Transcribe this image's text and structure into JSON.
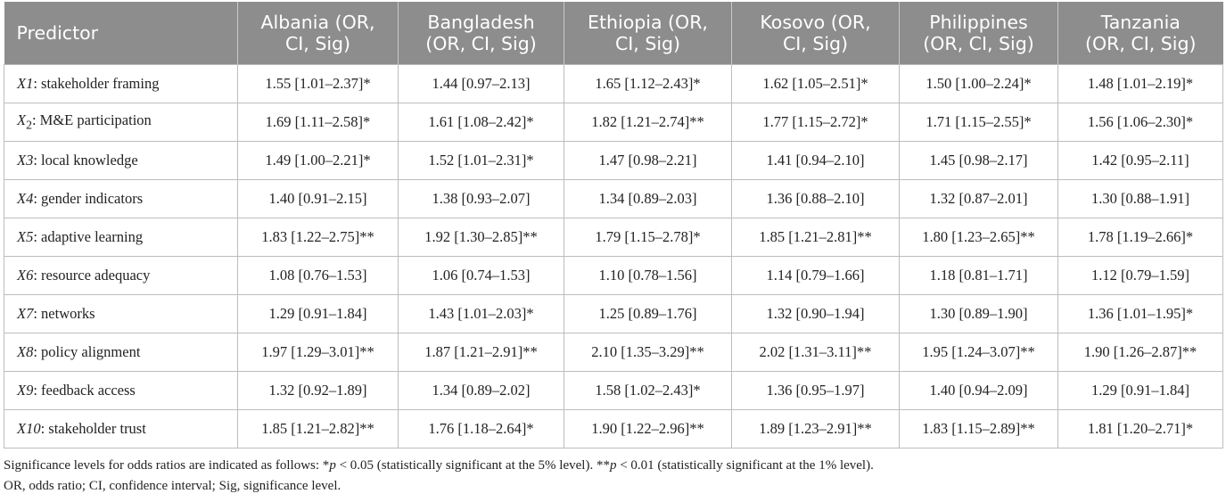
{
  "table": {
    "headers": [
      [
        "Predictor"
      ],
      [
        "Albania (OR,",
        "CI, Sig)"
      ],
      [
        "Bangladesh",
        "(OR, CI, Sig)"
      ],
      [
        "Ethiopia (OR,",
        "CI, Sig)"
      ],
      [
        "Kosovo (OR,",
        "CI, Sig)"
      ],
      [
        "Philippines",
        "(OR, CI, Sig)"
      ],
      [
        "Tanzania",
        "(OR, CI, Sig)"
      ]
    ],
    "rows": [
      {
        "var": "X1",
        "sub": "",
        "label": ": stakeholder framing",
        "values": [
          "1.55 [1.01–2.37]*",
          "1.44 [0.97–2.13]",
          "1.65 [1.12–2.43]*",
          "1.62 [1.05–2.51]*",
          "1.50 [1.00–2.24]*",
          "1.48 [1.01–2.19]*"
        ]
      },
      {
        "var": "X",
        "sub": "2",
        "label": ": M&E participation",
        "values": [
          "1.69 [1.11–2.58]*",
          "1.61 [1.08–2.42]*",
          "1.82 [1.21–2.74]**",
          "1.77 [1.15–2.72]*",
          "1.71 [1.15–2.55]*",
          "1.56 [1.06–2.30]*"
        ]
      },
      {
        "var": "X3",
        "sub": "",
        "label": ": local knowledge",
        "values": [
          "1.49 [1.00–2.21]*",
          "1.52 [1.01–2.31]*",
          "1.47 [0.98–2.21]",
          "1.41 [0.94–2.10]",
          "1.45 [0.98–2.17]",
          "1.42 [0.95–2.11]"
        ]
      },
      {
        "var": "X4",
        "sub": "",
        "label": ": gender indicators",
        "values": [
          "1.40 [0.91–2.15]",
          "1.38 [0.93–2.07]",
          "1.34 [0.89–2.03]",
          "1.36 [0.88–2.10]",
          "1.32 [0.87–2.01]",
          "1.30 [0.88–1.91]"
        ]
      },
      {
        "var": "X5",
        "sub": "",
        "label": ": adaptive learning",
        "values": [
          "1.83 [1.22–2.75]**",
          "1.92 [1.30–2.85]**",
          "1.79 [1.15–2.78]*",
          "1.85 [1.21–2.81]**",
          "1.80 [1.23–2.65]**",
          "1.78 [1.19–2.66]*"
        ]
      },
      {
        "var": "X6",
        "sub": "",
        "label": ": resource adequacy",
        "values": [
          "1.08 [0.76–1.53]",
          "1.06 [0.74–1.53]",
          "1.10 [0.78–1.56]",
          "1.14 [0.79–1.66]",
          "1.18 [0.81–1.71]",
          "1.12 [0.79–1.59]"
        ]
      },
      {
        "var": "X7",
        "sub": "",
        "label": ": networks",
        "values": [
          "1.29 [0.91–1.84]",
          "1.43 [1.01–2.03]*",
          "1.25 [0.89–1.76]",
          "1.32 [0.90–1.94]",
          "1.30 [0.89–1.90]",
          "1.36 [1.01–1.95]*"
        ]
      },
      {
        "var": "X8",
        "sub": "",
        "label": ": policy alignment",
        "values": [
          "1.97 [1.29–3.01]**",
          "1.87 [1.21–2.91]**",
          "2.10 [1.35–3.29]**",
          "2.02 [1.31–3.11]**",
          "1.95 [1.24–3.07]**",
          "1.90 [1.26–2.87]**"
        ]
      },
      {
        "var": "X9",
        "sub": "",
        "label": ": feedback access",
        "values": [
          "1.32 [0.92–1.89]",
          "1.34 [0.89–2.02]",
          "1.58 [1.02–2.43]*",
          "1.36 [0.95–1.97]",
          "1.40 [0.94–2.09]",
          "1.29 [0.91–1.84]"
        ]
      },
      {
        "var": "X10",
        "sub": "",
        "label": ": stakeholder trust",
        "values": [
          "1.85 [1.21–2.82]**",
          "1.76 [1.18–2.64]*",
          "1.90 [1.22–2.96]**",
          "1.89 [1.23–2.91]**",
          "1.83 [1.15–2.89]**",
          "1.81 [1.20–2.71]*"
        ]
      }
    ]
  },
  "notes": {
    "line1": {
      "a": "Significance levels for odds ratios are indicated as follows: *",
      "p1": "p",
      "b": " < 0.05 (statistically significant at the 5% level). **",
      "p2": "p",
      "c": " < 0.01 (statistically significant at the 1% level)."
    },
    "line2": "OR, odds ratio; CI, confidence interval; Sig, significance level."
  }
}
